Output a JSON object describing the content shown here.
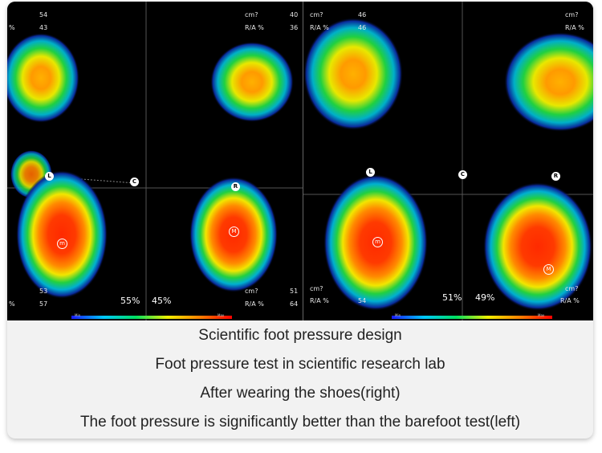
{
  "scans": {
    "left": {
      "top_labels": {
        "l1": "54",
        "l2": "43",
        "l_pct": "%",
        "r1_unit": "cm?",
        "r1_val": "40",
        "r2_unit": "R/A %",
        "r2_val": "36"
      },
      "bottom_labels": {
        "l1": "53",
        "l2": "57",
        "l_pct": "%",
        "r1_unit": "cm?",
        "r1_val": "51",
        "r2_unit": "R/A %",
        "r2_val": "64"
      },
      "left_percent": "55%",
      "right_percent": "45%",
      "markers": {
        "L": "L",
        "C": "C",
        "R": "R",
        "m_left": "m",
        "m_right": "M"
      },
      "scale_min": "Min",
      "scale_max": "Max"
    },
    "right": {
      "top_labels": {
        "l1_unit": "cm?",
        "l1_val": "46",
        "l2_unit": "R/A %",
        "l2_val": "46",
        "r1_unit": "cm?",
        "r2_unit": "R/A %"
      },
      "bottom_labels": {
        "l1_unit": "cm?",
        "l2_unit": "R/A %",
        "l2_val": "54",
        "r1_unit": "cm?",
        "r2_unit": "R/A %"
      },
      "left_percent": "51%",
      "right_percent": "49%",
      "markers": {
        "L": "L",
        "C": "C",
        "R": "R",
        "m_left": "m",
        "m_right": "M"
      },
      "scale_min": "Min",
      "scale_max": "Max"
    }
  },
  "captions": [
    "Scientific foot pressure design",
    "Foot pressure test in scientific research lab",
    "After wearing the shoes(right)",
    "The foot pressure is significantly better than the barefoot test(left)"
  ]
}
